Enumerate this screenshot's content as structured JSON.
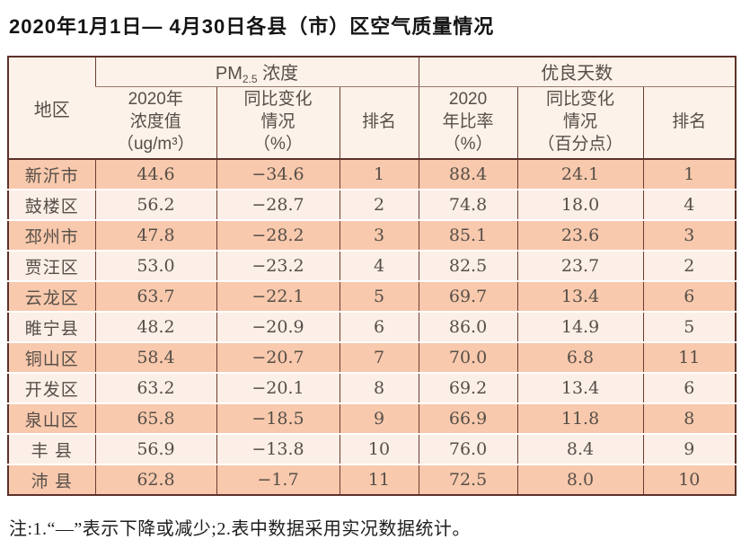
{
  "page": {
    "title": "2020年1月1日— 4月30日各县（市）区空气质量情况",
    "footnote": "注:1.“—”表示下降或减少;2.表中数据采用实况数据统计。"
  },
  "table": {
    "region_header": "地区",
    "pm_group": {
      "prefix": "PM",
      "sub": "2.5",
      "suffix": " 浓度"
    },
    "good_group": "优良天数",
    "sub_headers": [
      "2020年\n浓度值\n（ug/m³）",
      "同比变化\n情况\n（%）",
      "排名",
      "2020\n年比率\n（%）",
      "同比变化\n情况\n（百分点）",
      "排名"
    ]
  },
  "colors": {
    "row_salmon": "#f8c9ad",
    "row_light": "#fcefe7",
    "header_bg": "#fdf2e9",
    "border_dark": "#5b322a",
    "text": "#564f48"
  },
  "chart_data": {
    "type": "table",
    "title": "2020年1月1日— 4月30日各县（市）区空气质量情况",
    "column_groups": [
      {
        "label": "地区",
        "span": 1
      },
      {
        "label": "PM2.5 浓度",
        "span": 3
      },
      {
        "label": "优良天数",
        "span": 3
      }
    ],
    "columns": [
      "地区",
      "2020年浓度值（ug/m³）",
      "同比变化情况（%）",
      "排名",
      "2020年比率（%）",
      "同比变化情况（百分点）",
      "排名"
    ],
    "rows": [
      {
        "region": "新沂市",
        "pm2020": "44.6",
        "pm_change": "−34.6",
        "pm_rank": "1",
        "good_rate": "88.4",
        "good_change": "24.1",
        "good_rank": "1"
      },
      {
        "region": "鼓楼区",
        "pm2020": "56.2",
        "pm_change": "−28.7",
        "pm_rank": "2",
        "good_rate": "74.8",
        "good_change": "18.0",
        "good_rank": "4"
      },
      {
        "region": "邳州市",
        "pm2020": "47.8",
        "pm_change": "−28.2",
        "pm_rank": "3",
        "good_rate": "85.1",
        "good_change": "23.6",
        "good_rank": "3"
      },
      {
        "region": "贾汪区",
        "pm2020": "53.0",
        "pm_change": "−23.2",
        "pm_rank": "4",
        "good_rate": "82.5",
        "good_change": "23.7",
        "good_rank": "2"
      },
      {
        "region": "云龙区",
        "pm2020": "63.7",
        "pm_change": "−22.1",
        "pm_rank": "5",
        "good_rate": "69.7",
        "good_change": "13.4",
        "good_rank": "6"
      },
      {
        "region": "睢宁县",
        "pm2020": "48.2",
        "pm_change": "−20.9",
        "pm_rank": "6",
        "good_rate": "86.0",
        "good_change": "14.9",
        "good_rank": "5"
      },
      {
        "region": "铜山区",
        "pm2020": "58.4",
        "pm_change": "−20.7",
        "pm_rank": "7",
        "good_rate": "70.0",
        "good_change": "6.8",
        "good_rank": "11"
      },
      {
        "region": "开发区",
        "pm2020": "63.2",
        "pm_change": "−20.1",
        "pm_rank": "8",
        "good_rate": "69.2",
        "good_change": "13.4",
        "good_rank": "6"
      },
      {
        "region": "泉山区",
        "pm2020": "65.8",
        "pm_change": "−18.5",
        "pm_rank": "9",
        "good_rate": "66.9",
        "good_change": "11.8",
        "good_rank": "8"
      },
      {
        "region": "丰 县",
        "pm2020": "56.9",
        "pm_change": "−13.8",
        "pm_rank": "10",
        "good_rate": "76.0",
        "good_change": "8.4",
        "good_rank": "9"
      },
      {
        "region": "沛 县",
        "pm2020": "62.8",
        "pm_change": "−1.7",
        "pm_rank": "11",
        "good_rate": "72.5",
        "good_change": "8.0",
        "good_rank": "10"
      }
    ],
    "notes": "注:1.“—”表示下降或减少;2.表中数据采用实况数据统计。"
  }
}
